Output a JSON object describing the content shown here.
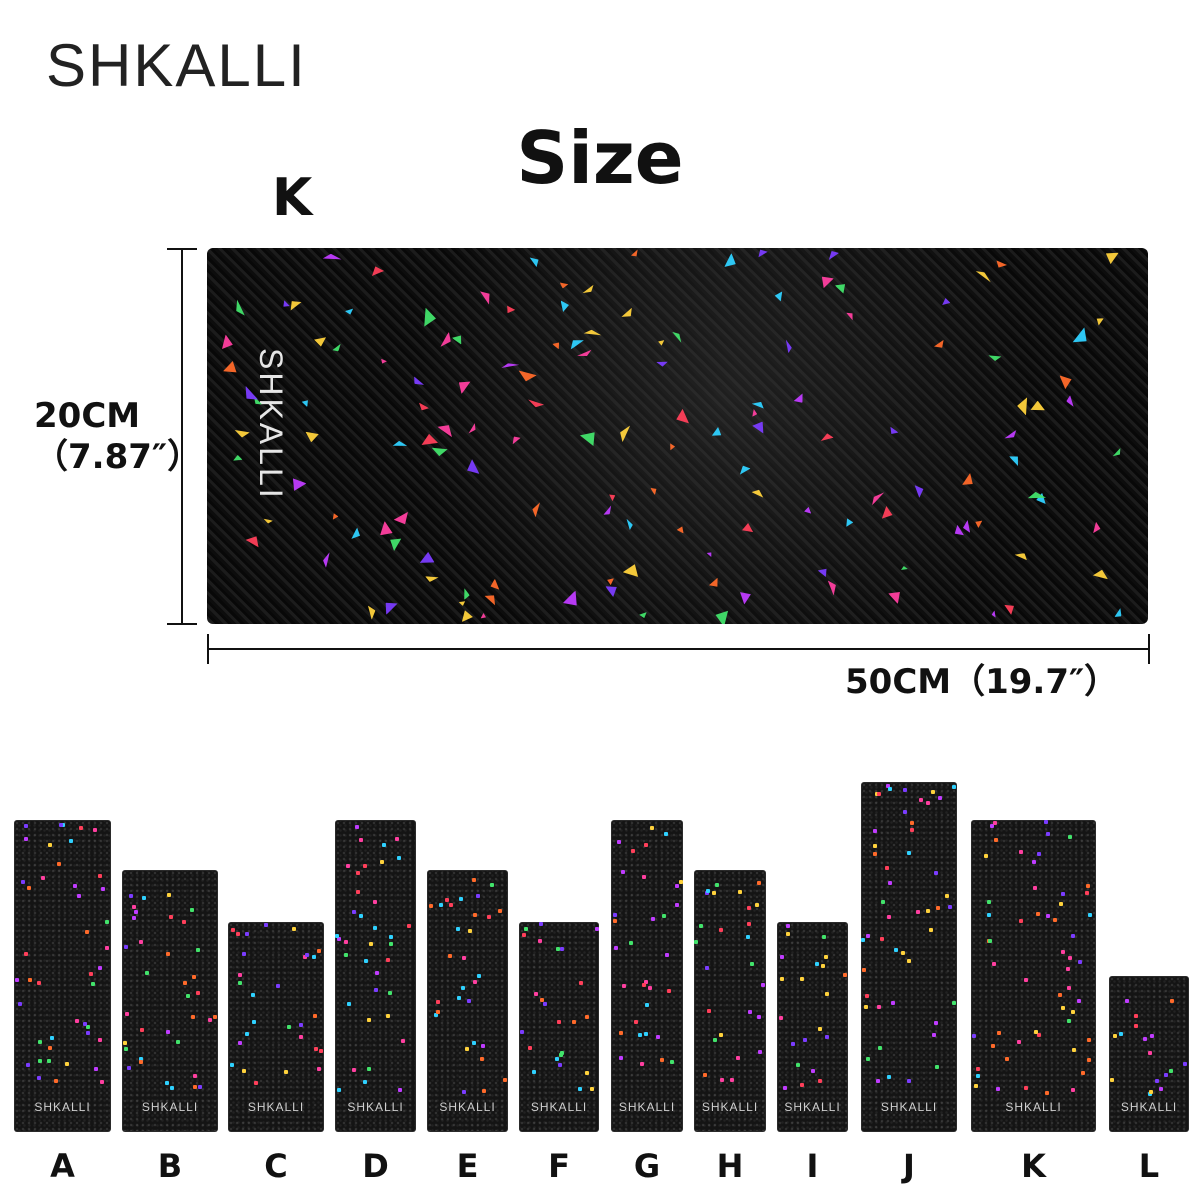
{
  "brand": "SHKALLI",
  "title": "Size",
  "featured": {
    "letter": "K",
    "logo_text": "SHKALLI",
    "height_label": "20CM",
    "height_label_in": "（7.87″）",
    "width_label": "50CM（19.7″）"
  },
  "variants": [
    {
      "letter": "A",
      "logo_text": "SHKALLI"
    },
    {
      "letter": "B",
      "logo_text": "SHKALLI"
    },
    {
      "letter": "C",
      "logo_text": "SHKALLI"
    },
    {
      "letter": "D",
      "logo_text": "SHKALLI"
    },
    {
      "letter": "E",
      "logo_text": "SHKALLI"
    },
    {
      "letter": "F",
      "logo_text": "SHKALLI"
    },
    {
      "letter": "G",
      "logo_text": "SHKALLI"
    },
    {
      "letter": "H",
      "logo_text": "SHKALLI"
    },
    {
      "letter": "I",
      "logo_text": "SHKALLI"
    },
    {
      "letter": "J",
      "logo_text": "SHKALLI"
    },
    {
      "letter": "K",
      "logo_text": "SHKALLI"
    },
    {
      "letter": "L",
      "logo_text": "SHKALLI"
    }
  ],
  "colors": {
    "flakes": [
      "#ff3fa0",
      "#7b3cff",
      "#2fd1ff",
      "#ffd23c",
      "#ff6a2a",
      "#42e36b",
      "#c03cff",
      "#ff3f5a"
    ]
  }
}
